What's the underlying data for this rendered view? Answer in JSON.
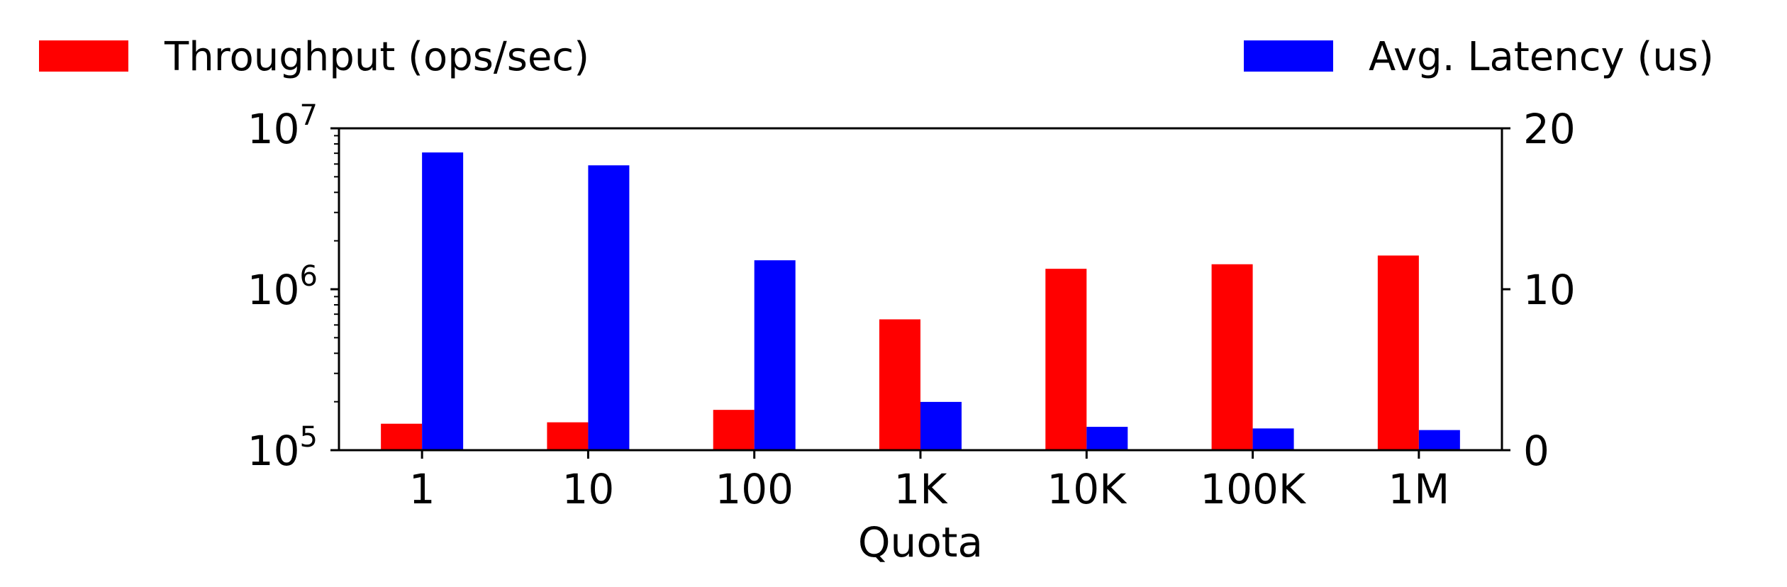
{
  "chart_data": {
    "type": "bar",
    "categories": [
      "1",
      "10",
      "100",
      "1K",
      "10K",
      "100K",
      "1M"
    ],
    "xlabel": "Quota",
    "series": [
      {
        "name": "Throughput (ops/sec)",
        "axis": "left",
        "color": "#ff0000",
        "values": [
          146000,
          149000,
          178000,
          650000,
          1340000,
          1430000,
          1620000
        ]
      },
      {
        "name": "Avg. Latency (us)",
        "axis": "right",
        "color": "#0000ff",
        "values": [
          18.5,
          17.7,
          11.8,
          3.0,
          1.45,
          1.35,
          1.25
        ]
      }
    ],
    "left_axis": {
      "scale": "log",
      "ylim": [
        100000,
        10000000
      ],
      "ticks": [
        {
          "value": 100000,
          "base": "10",
          "exp": "5"
        },
        {
          "value": 1000000,
          "base": "10",
          "exp": "6"
        },
        {
          "value": 10000000,
          "base": "10",
          "exp": "7"
        }
      ]
    },
    "right_axis": {
      "scale": "linear",
      "ylim": [
        0,
        20
      ],
      "ticks": [
        0,
        10,
        20
      ]
    },
    "legend": {
      "placement": "top",
      "items": [
        {
          "label": "Throughput (ops/sec)",
          "color": "#ff0000"
        },
        {
          "label": "Avg. Latency (us)",
          "color": "#0000ff"
        }
      ]
    },
    "grid": false
  }
}
